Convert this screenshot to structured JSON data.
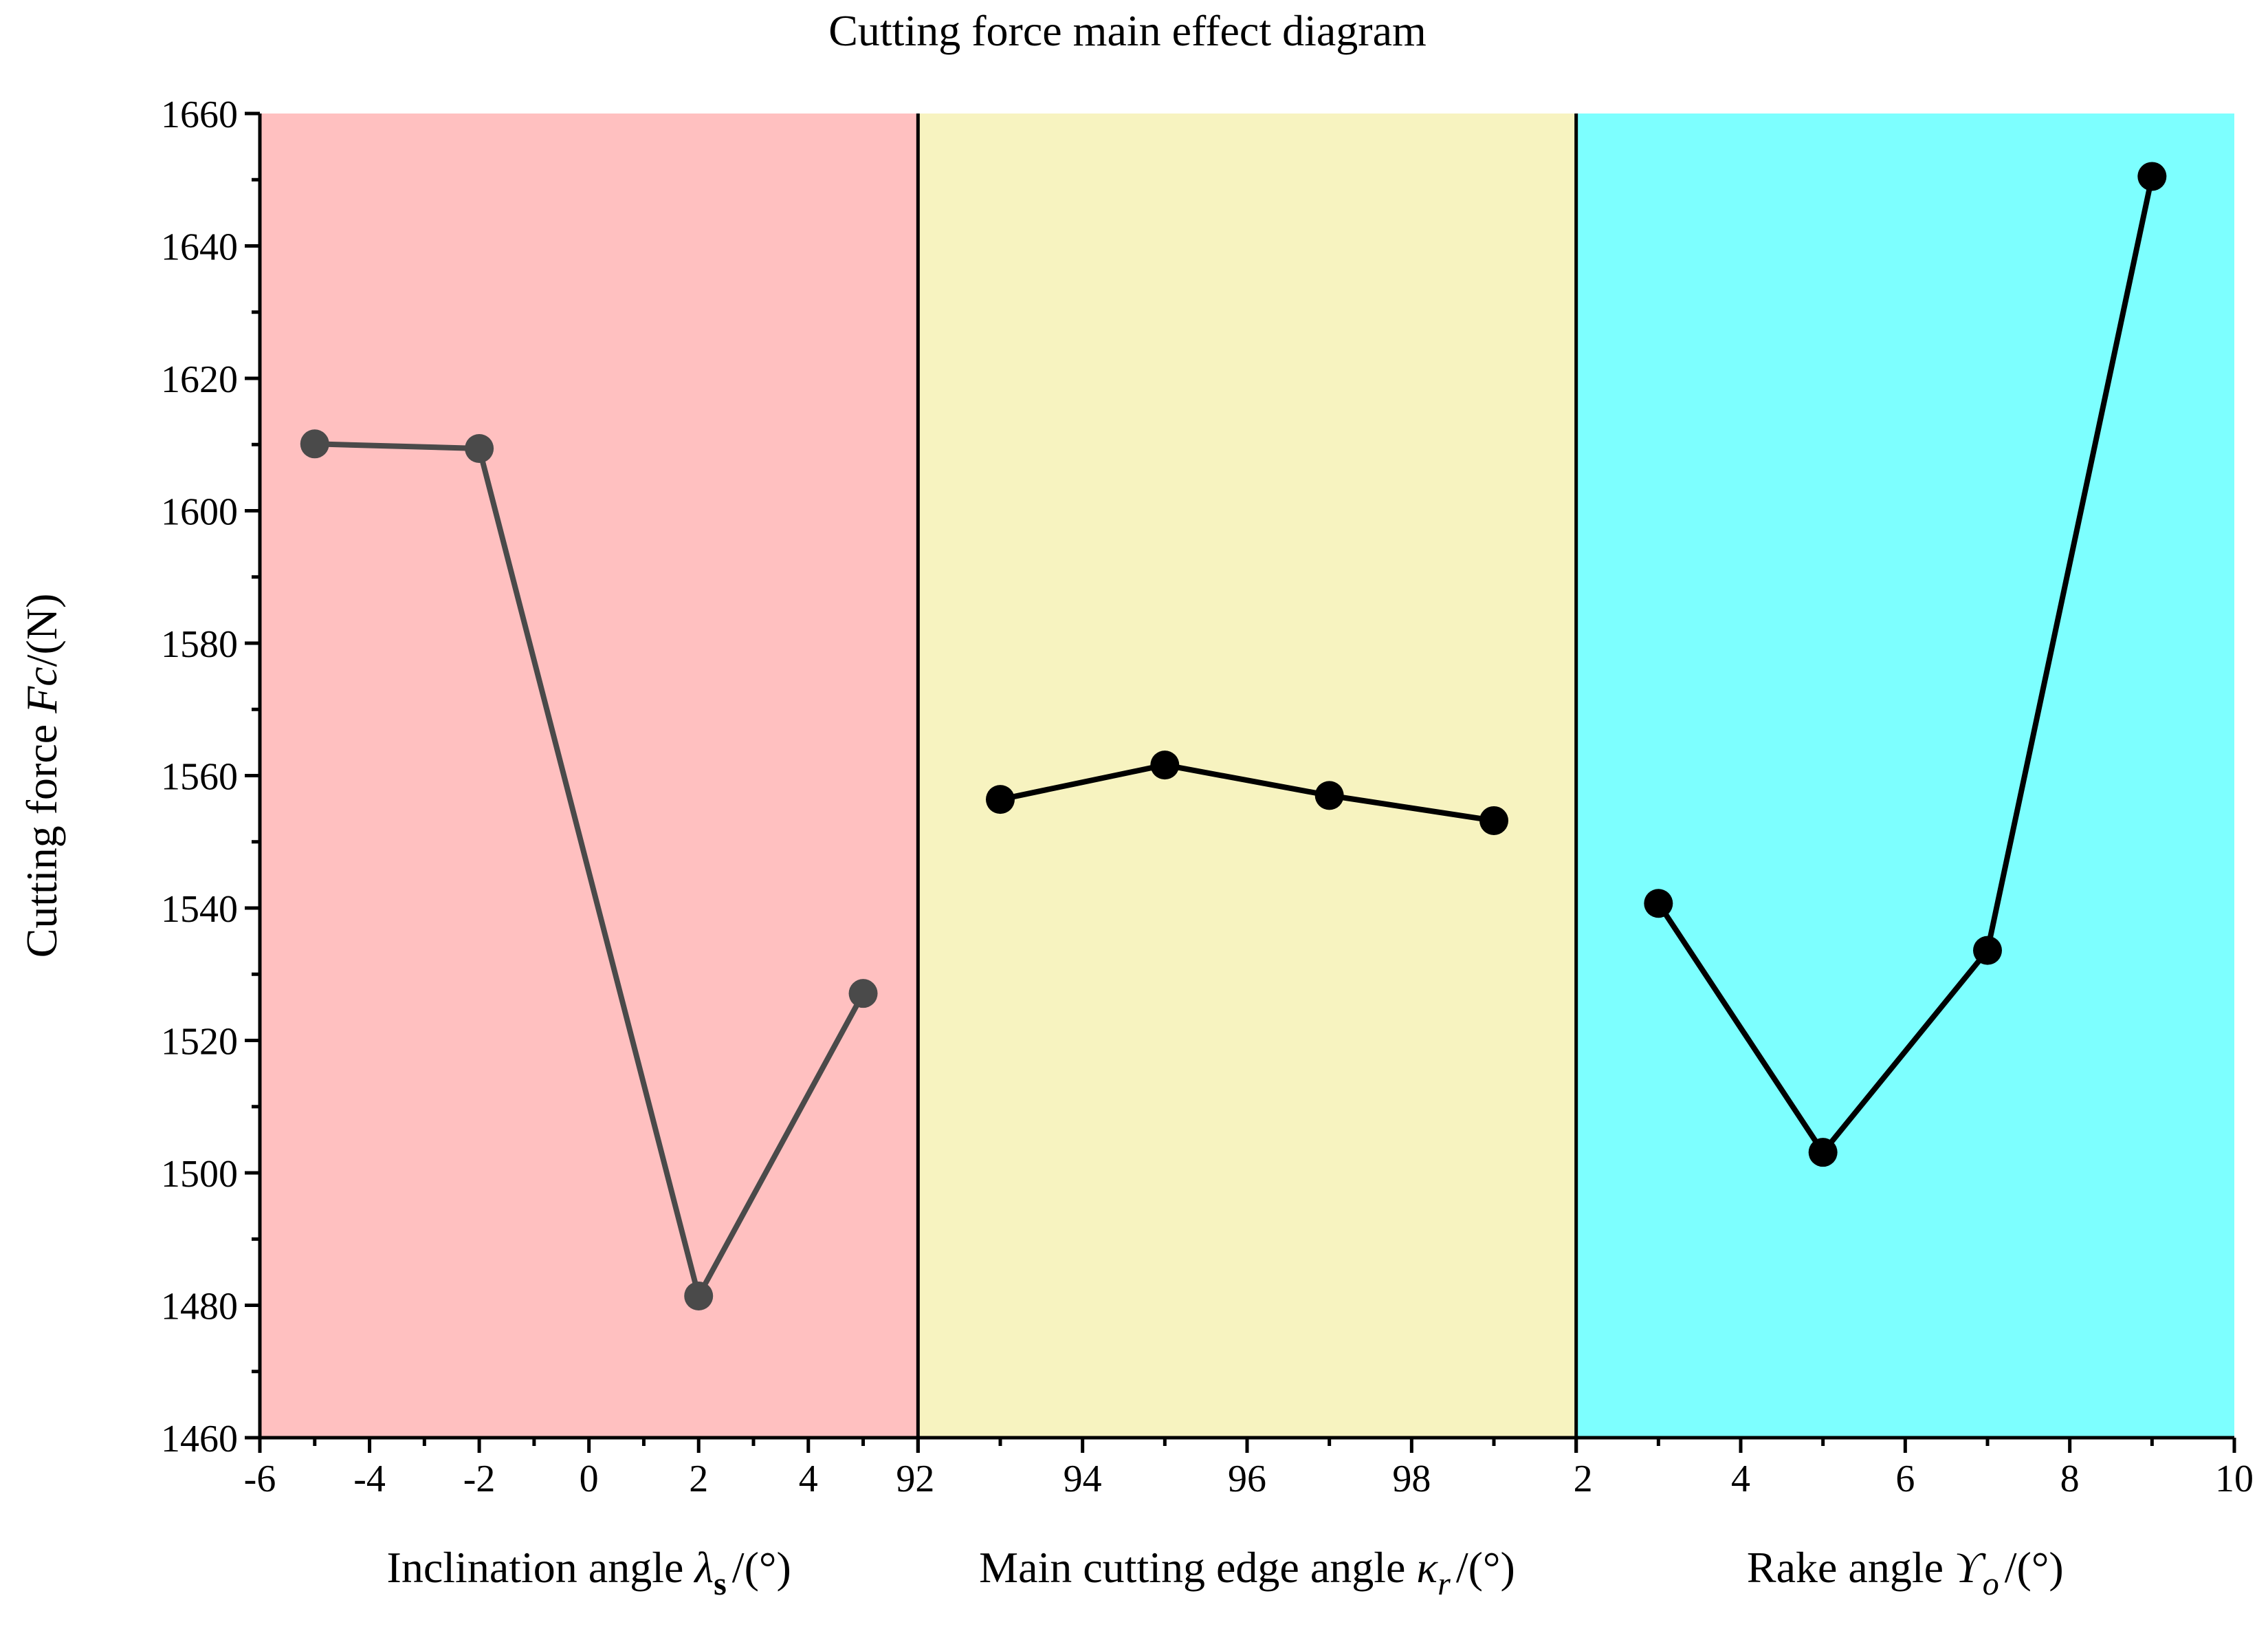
{
  "chart_data": {
    "type": "line",
    "title": "Cutting force main effect diagram",
    "ylabel": {
      "prefix": "Cutting force ",
      "symbol": "Fc",
      "unit": "/(N)"
    },
    "ylim": [
      1460,
      1660
    ],
    "y_ticks": [
      "1460",
      "1480",
      "1500",
      "1520",
      "1540",
      "1560",
      "1580",
      "1600",
      "1620",
      "1640",
      "1660"
    ],
    "y_major_step": 20,
    "y_minor_step": 10,
    "panels": [
      {
        "name": "inclination-angle",
        "background": "#ffc0c0",
        "line_color": "#4a4a4a",
        "xlim": [
          -6,
          6
        ],
        "x_ticks": [
          -6,
          -4,
          -2,
          0,
          2,
          4
        ],
        "x_tick_labels": [
          "-6",
          "-4",
          "-2",
          "0",
          "2",
          "4"
        ],
        "xlabel": {
          "prefix": "Inclination angle ",
          "symbol": "λ",
          "subscript": "s",
          "unit": "/(°)"
        },
        "x": [
          -5,
          -2,
          2,
          5
        ],
        "values": [
          1610.1,
          1609.4,
          1481.4,
          1527.1
        ]
      },
      {
        "name": "main-cutting-edge-angle",
        "background": "#f7f3c0",
        "line_color": "#000000",
        "xlim": [
          92,
          100
        ],
        "x_ticks": [
          92,
          94,
          96,
          98
        ],
        "x_tick_labels": [
          "92",
          "94",
          "96",
          "98"
        ],
        "xlabel": {
          "prefix": "Main cutting edge angle ",
          "symbol": "κ",
          "subscript": "r",
          "unit": "/(°)"
        },
        "x": [
          93,
          95,
          97,
          99
        ],
        "values": [
          1556.4,
          1561.6,
          1557.0,
          1553.2
        ]
      },
      {
        "name": "rake-angle",
        "background": "#7dffff",
        "line_color": "#000000",
        "xlim": [
          2,
          10
        ],
        "x_ticks": [
          2,
          4,
          6,
          8,
          10
        ],
        "x_tick_labels": [
          "2",
          "4",
          "6",
          "8",
          "10"
        ],
        "xlabel": {
          "prefix": "Rake angle  ",
          "symbol": "ϒ",
          "subscript": "o",
          "unit": "/(°)"
        },
        "x": [
          3,
          5,
          7,
          9
        ],
        "values": [
          1540.7,
          1503.1,
          1533.6,
          1650.5
        ]
      }
    ]
  }
}
